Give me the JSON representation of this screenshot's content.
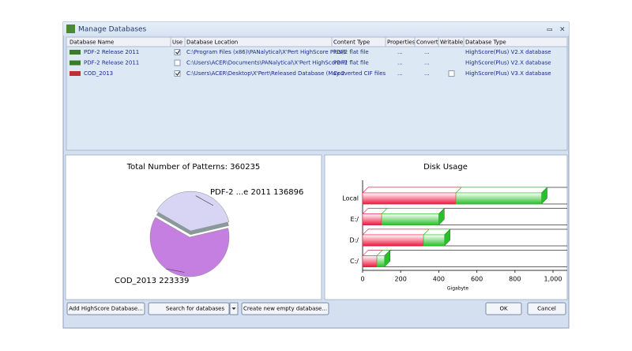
{
  "window": {
    "title": "Manage Databases"
  },
  "table": {
    "columns": [
      "Database Name",
      "Use",
      "Database Location",
      "Content Type",
      "Properties",
      "Convert",
      "Writable",
      "Database Type"
    ],
    "rows": [
      {
        "name": "PDF-2 Release 2011",
        "use": true,
        "location": "C:\\Program Files (x86)\\PANalytical\\X'Pert HighScore Plus\\E",
        "content": "PDF2 flat file",
        "properties": "...",
        "convert": "...",
        "type": "HighScore(Plus) V2.X database"
      },
      {
        "name": "PDF-2 Release 2011",
        "use": false,
        "location": "C:\\Users\\ACER\\Documents\\PANalytical\\X'Pert HighScore Pl",
        "content": "PDF2 flat file",
        "properties": "...",
        "convert": "...",
        "type": "HighScore(Plus) V2.X database"
      },
      {
        "name": "COD_2013",
        "use": true,
        "location": "C:\\Users\\ACER\\Desktop\\X'Pert\\Released Database (May 2",
        "content": "Converted CIF files",
        "properties": "...",
        "convert": "...",
        "writable": false,
        "type": "HighScore(Plus) V3.X database"
      }
    ]
  },
  "pie_chart": {
    "type": "pie",
    "title": "Total Number of Patterns: 360235",
    "categories": [
      "PDF-2 ...e 2011",
      "COD_2013"
    ],
    "values": [
      136896,
      223339
    ],
    "colors": [
      "#d8d4f4",
      "#c57fe0"
    ]
  },
  "bar_chart": {
    "type": "bar",
    "orientation": "horizontal",
    "stacked": true,
    "title": "Disk Usage",
    "categories": [
      "Local",
      "E:/",
      "D:/",
      "C:/"
    ],
    "series": [
      {
        "color": "#f01840",
        "values": [
          490,
          100,
          320,
          75
        ]
      },
      {
        "color": "#28c028",
        "values": [
          450,
          300,
          110,
          40
        ]
      }
    ],
    "xlim": [
      0,
      1000
    ],
    "xticks": [
      0,
      200,
      400,
      600,
      800,
      {
        "value": 1000,
        "label": "1,000"
      }
    ],
    "xlabel": "Gigabyte"
  },
  "buttons": [
    "Add HighScore Database...",
    "Search for databases",
    "Create new empty database...",
    "OK",
    "Cancel"
  ]
}
